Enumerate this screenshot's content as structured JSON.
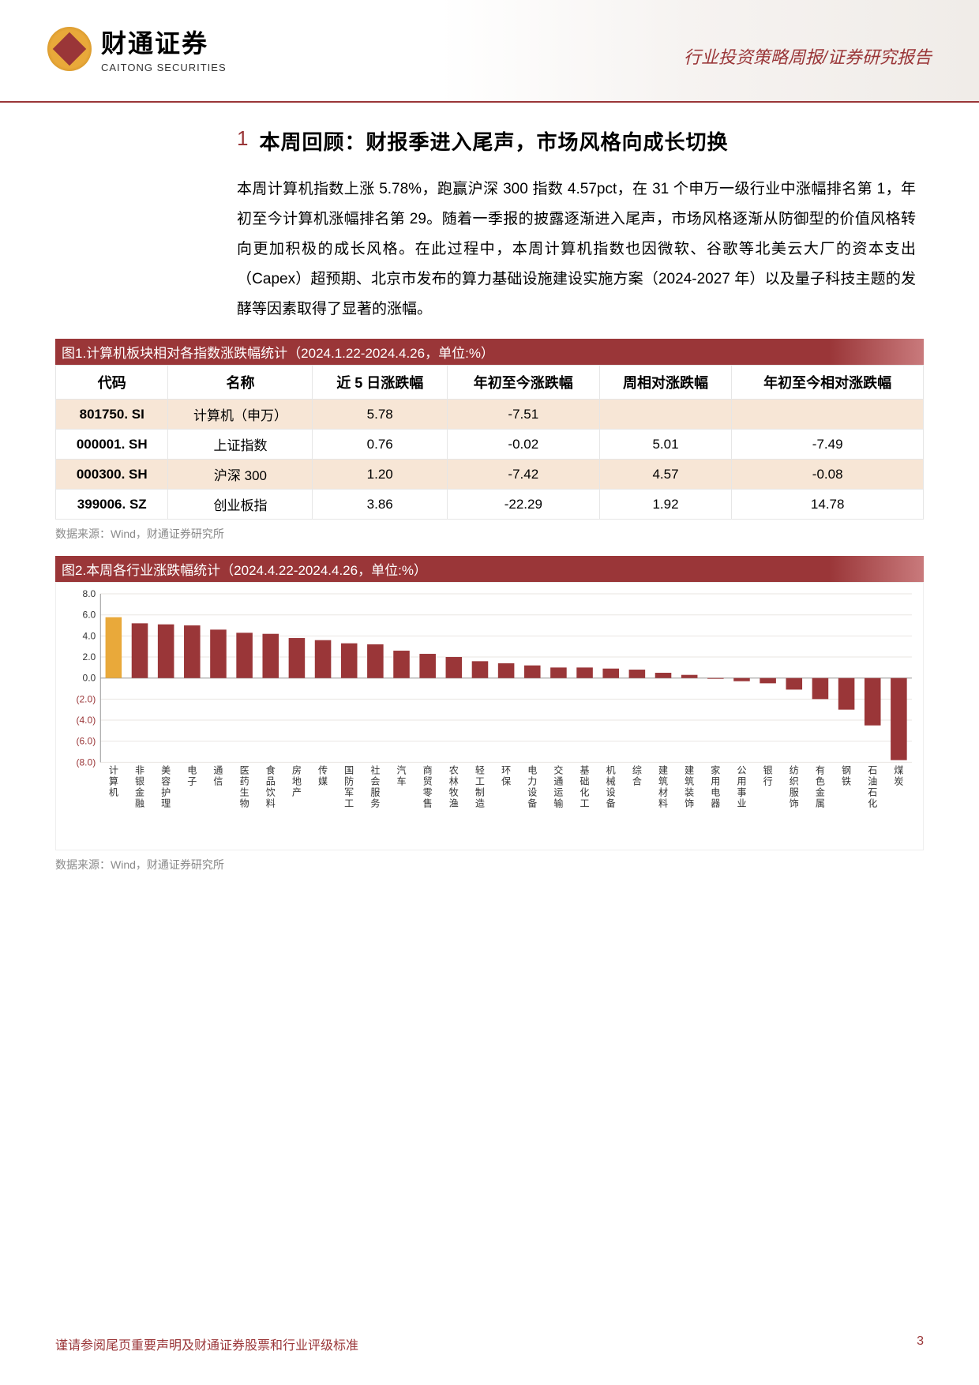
{
  "header": {
    "company_cn": "财通证券",
    "company_en": "CAITONG SECURITIES",
    "right_text": "行业投资策略周报/证券研究报告"
  },
  "section": {
    "number": "1",
    "title": "本周回顾：财报季进入尾声，市场风格向成长切换",
    "paragraph": "本周计算机指数上涨 5.78%，跑赢沪深 300 指数 4.57pct，在 31 个申万一级行业中涨幅排名第 1，年初至今计算机涨幅排名第 29。随着一季报的披露逐渐进入尾声，市场风格逐渐从防御型的价值风格转向更加积极的成长风格。在此过程中，本周计算机指数也因微软、谷歌等北美云大厂的资本支出（Capex）超预期、北京市发布的算力基础设施建设实施方案（2024-2027 年）以及量子科技主题的发酵等因素取得了显著的涨幅。"
  },
  "figure1": {
    "title": "图1.计算机板块相对各指数涨跌幅统计（2024.1.22-2024.4.26，单位:%）",
    "columns": [
      "代码",
      "名称",
      "近 5 日涨跌幅",
      "年初至今涨跌幅",
      "周相对涨跌幅",
      "年初至今相对涨跌幅"
    ],
    "rows": [
      {
        "hi": true,
        "cells": [
          "801750. SI",
          "计算机（申万）",
          "5.78",
          "-7.51",
          "",
          ""
        ]
      },
      {
        "hi": false,
        "cells": [
          "000001. SH",
          "上证指数",
          "0.76",
          "-0.02",
          "5.01",
          "-7.49"
        ]
      },
      {
        "hi": true,
        "cells": [
          "000300. SH",
          "沪深 300",
          "1.20",
          "-7.42",
          "4.57",
          "-0.08"
        ]
      },
      {
        "hi": false,
        "cells": [
          "399006. SZ",
          "创业板指",
          "3.86",
          "-22.29",
          "1.92",
          "14.78"
        ]
      }
    ],
    "source": "数据来源：Wind，财通证券研究所"
  },
  "figure2": {
    "title": "图2.本周各行业涨跌幅统计（2024.4.22-2024.4.26，单位:%）",
    "source": "数据来源：Wind，财通证券研究所",
    "chart": {
      "type": "bar",
      "ylim": [
        -8,
        8
      ],
      "yticks": [
        8,
        6,
        4,
        2,
        0,
        -2,
        -4,
        -6,
        -8
      ],
      "ytick_labels": [
        "8.0",
        "6.0",
        "4.0",
        "2.0",
        "0.0",
        "(2.0)",
        "(4.0)",
        "(6.0)",
        "(8.0)"
      ],
      "grid_color": "#e9e6e2",
      "axis_color": "#999",
      "label_fontsize": 12,
      "tick_fontsize": 12,
      "highlight_color": "#e9a93a",
      "bar_color": "#9a3638",
      "neg_label_color": "#9a3638",
      "categories": [
        "计算机",
        "非银金融",
        "美容护理",
        "电子",
        "通信",
        "医药生物",
        "食品饮料",
        "房地产",
        "传媒",
        "国防军工",
        "社会服务",
        "汽车",
        "商贸零售",
        "农林牧渔",
        "轻工制造",
        "环保",
        "电力设备",
        "交通运输",
        "基础化工",
        "机械设备",
        "综合",
        "建筑材料",
        "建筑装饰",
        "家用电器",
        "公用事业",
        "银行",
        "纺织服饰",
        "有色金属",
        "钢铁",
        "石油石化",
        "煤炭"
      ],
      "values": [
        5.78,
        5.2,
        5.1,
        5.0,
        4.6,
        4.3,
        4.2,
        3.8,
        3.6,
        3.3,
        3.2,
        2.6,
        2.3,
        2.0,
        1.6,
        1.4,
        1.2,
        1.0,
        1.0,
        0.9,
        0.8,
        0.5,
        0.3,
        0.0,
        -0.3,
        -0.5,
        -1.1,
        -2.0,
        -3.0,
        -4.5,
        -7.8
      ],
      "highlight_index": 0,
      "bar_width": 0.62
    }
  },
  "footer": {
    "left": "谨请参阅尾页重要声明及财通证券股票和行业评级标准",
    "page": "3"
  }
}
